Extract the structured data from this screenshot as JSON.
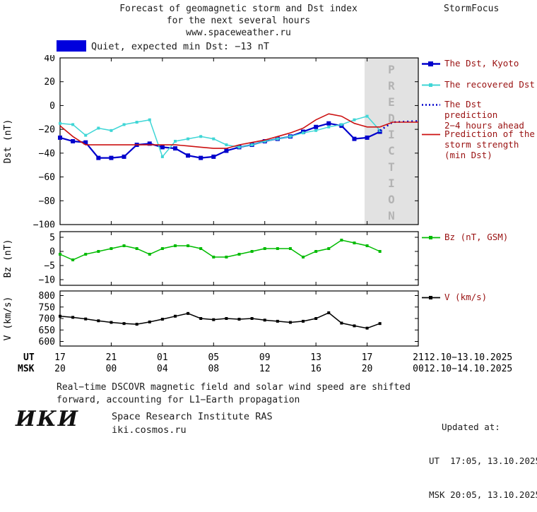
{
  "colors": {
    "blue": "#0000cc",
    "cyan": "#3fd6d6",
    "red": "#cc1111",
    "green": "#00bb00",
    "black": "#000000",
    "band": "#e2e2e2",
    "band_text": "#b3b3b3",
    "legend_text": "#991111",
    "status_swatch": "#0000dd"
  },
  "header": {
    "title_line1": "Forecast of geomagnetic storm and Dst index",
    "title_line2": "for the next several hours",
    "title_line3": "www.spaceweather.ru",
    "brand": "StormFocus"
  },
  "status": {
    "label": "Quiet, expected min Dst: −13 nT"
  },
  "legend": {
    "items": [
      {
        "label_lines": [
          "The Dst, Kyoto"
        ],
        "color": "#0000cc",
        "style": "square-line"
      },
      {
        "label_lines": [
          "The recovered Dst"
        ],
        "color": "#3fd6d6",
        "style": "square-line"
      },
      {
        "label_lines": [
          "The Dst prediction",
          "2−4 hours ahead"
        ],
        "color": "#0000cc",
        "style": "dotted"
      },
      {
        "label_lines": [
          "Prediction of the",
          "storm strength",
          "(min Dst)"
        ],
        "color": "#cc1111",
        "style": "line"
      },
      {
        "label_lines": [
          "Bz (nT, GSM)"
        ],
        "color": "#00bb00",
        "style": "square-line"
      },
      {
        "label_lines": [
          "V (km/s)"
        ],
        "color": "#000000",
        "style": "square-line"
      }
    ]
  },
  "footer": {
    "note_line1": "Real−time DSCOVR magnetic field and solar wind speed are shifted",
    "note_line2": "forward, accounting for L1−Earth propagation",
    "updated_label": "Updated at:",
    "updated_ut": "UT  17:05, 13.10.2025",
    "updated_msk": "MSK 20:05, 13.10.2025",
    "logo": "ИКИ",
    "institute": "Space Research Institute RAS",
    "website": "iki.cosmos.ru"
  },
  "chart_data": [
    {
      "type": "line",
      "name": "dst-panel",
      "ylabel": "Dst (nT)",
      "ylim": [
        -100,
        40
      ],
      "yticks": [
        40,
        20,
        0,
        -20,
        -40,
        -60,
        -80,
        -100
      ],
      "xlim": [
        0,
        28
      ],
      "xticks": [
        0,
        4,
        8,
        12,
        16,
        20,
        24,
        28
      ],
      "xtick_labels_ut": [
        "17",
        "21",
        "01",
        "05",
        "09",
        "13",
        "17",
        "21"
      ],
      "xtick_labels_msk": [
        "20",
        "00",
        "04",
        "08",
        "12",
        "16",
        "20",
        "00"
      ],
      "date_ut": "12.10−13.10.2025",
      "date_msk": "12.10−14.10.2025",
      "axis_row_labels": [
        "UT",
        "MSK"
      ],
      "prediction_band": [
        23.8,
        28
      ],
      "prediction_band_label": "PREDICTION",
      "series": [
        {
          "name": "The Dst, Kyoto",
          "color": "#0000cc",
          "marker": "square",
          "marker_size": 6,
          "width": 2.2,
          "x": [
            0,
            1,
            2,
            3,
            4,
            5,
            6,
            7,
            8,
            9,
            10,
            11,
            12,
            13,
            14,
            15,
            16,
            17,
            18,
            19,
            20,
            21,
            22,
            23,
            24,
            25
          ],
          "y": [
            -27,
            -30,
            -31,
            -44,
            -44,
            -43,
            -33,
            -32,
            -35,
            -36,
            -42,
            -44,
            -43,
            -38,
            -35,
            -33,
            -30,
            -28,
            -26,
            -22,
            -18,
            -15,
            -17,
            -28,
            -27,
            -22
          ]
        },
        {
          "name": "The recovered Dst",
          "color": "#3fd6d6",
          "marker": "square",
          "marker_size": 4,
          "width": 1.5,
          "x": [
            0,
            1,
            2,
            3,
            4,
            5,
            6,
            7,
            8,
            9,
            10,
            11,
            12,
            13,
            14,
            15,
            16,
            17,
            18,
            19,
            20,
            21,
            22,
            23,
            24,
            25
          ],
          "y": [
            -15,
            -16,
            -25,
            -19,
            -21,
            -16,
            -14,
            -12,
            -43,
            -30,
            -28,
            -26,
            -28,
            -33,
            -35,
            -33,
            -30,
            -28,
            -26,
            -23,
            -21,
            -18,
            -16,
            -12,
            -9,
            -21
          ]
        },
        {
          "name": "The Dst prediction 2−4 hours ahead",
          "color": "#0000cc",
          "dash": "2,4",
          "width": 2.5,
          "x": [
            25,
            26,
            28
          ],
          "y": [
            -21,
            -14,
            -13
          ]
        },
        {
          "name": "Prediction of the storm strength (min Dst)",
          "color": "#cc1111",
          "width": 1.6,
          "x": [
            0,
            1,
            2,
            3,
            4,
            5,
            6,
            7,
            8,
            9,
            10,
            11,
            12,
            13,
            14,
            15,
            16,
            17,
            18,
            19,
            20,
            21,
            22,
            23,
            24,
            25,
            26,
            27,
            28
          ],
          "y": [
            -17,
            -26,
            -33,
            -33,
            -33,
            -33,
            -33,
            -33,
            -33,
            -33,
            -34,
            -35,
            -36,
            -36,
            -33,
            -31,
            -29,
            -26,
            -23,
            -19,
            -12,
            -7,
            -9,
            -15,
            -18,
            -18,
            -14,
            -14,
            -14
          ]
        }
      ]
    },
    {
      "type": "line",
      "name": "bz-panel",
      "ylabel": "Bz (nT)",
      "ylim": [
        -12,
        7
      ],
      "yticks": [
        5,
        0,
        -5,
        -10
      ],
      "xlim": [
        0,
        28
      ],
      "xticks": [
        0,
        4,
        8,
        12,
        16,
        20,
        24,
        28
      ],
      "series": [
        {
          "name": "Bz (nT, GSM)",
          "color": "#00bb00",
          "marker": "square",
          "marker_size": 4,
          "width": 1.5,
          "x": [
            0,
            1,
            2,
            3,
            4,
            5,
            6,
            7,
            8,
            9,
            10,
            11,
            12,
            13,
            14,
            15,
            16,
            17,
            18,
            19,
            20,
            21,
            22,
            23,
            24,
            25
          ],
          "y": [
            -1,
            -3,
            -1,
            0,
            1,
            2,
            1,
            -1,
            1,
            2,
            2,
            1,
            -2,
            -2,
            -1,
            0,
            1,
            1,
            1,
            -2,
            0,
            1,
            4,
            3,
            2,
            0
          ]
        }
      ]
    },
    {
      "type": "line",
      "name": "v-panel",
      "ylabel": "V (km/s)",
      "ylim": [
        580,
        820
      ],
      "yticks": [
        800,
        750,
        700,
        650,
        600
      ],
      "xlim": [
        0,
        28
      ],
      "xticks": [
        0,
        4,
        8,
        12,
        16,
        20,
        24,
        28
      ],
      "series": [
        {
          "name": "V (km/s)",
          "color": "#000000",
          "marker": "square",
          "marker_size": 4,
          "width": 1.5,
          "x": [
            0,
            1,
            2,
            3,
            4,
            5,
            6,
            7,
            8,
            9,
            10,
            11,
            12,
            13,
            14,
            15,
            16,
            17,
            18,
            19,
            20,
            21,
            22,
            23,
            24,
            25
          ],
          "y": [
            710,
            705,
            698,
            690,
            683,
            678,
            675,
            685,
            697,
            710,
            722,
            700,
            695,
            700,
            697,
            700,
            693,
            688,
            683,
            688,
            700,
            725,
            680,
            668,
            658,
            678
          ]
        }
      ]
    }
  ]
}
